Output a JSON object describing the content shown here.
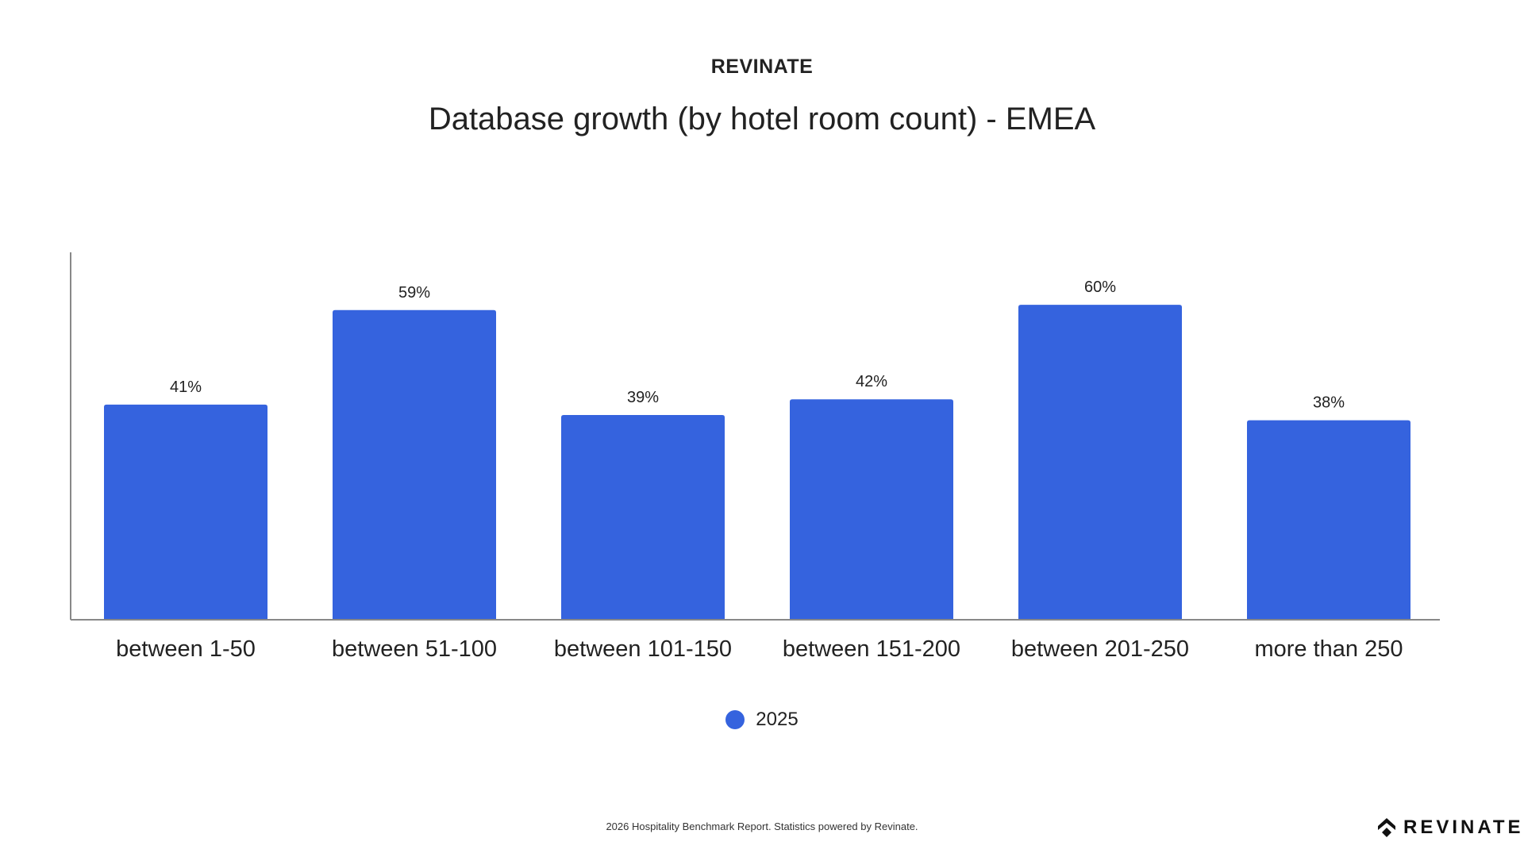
{
  "header": {
    "brand": "REVINATE"
  },
  "chart_data": {
    "type": "bar",
    "title": "Database growth (by hotel room count) - EMEA",
    "categories": [
      "between 1-50",
      "between 51-100",
      "between 101-150",
      "between 151-200",
      "between 201-250",
      "more than 250"
    ],
    "series": [
      {
        "name": "2025",
        "values": [
          41,
          59,
          39,
          42,
          60,
          38
        ],
        "labels": [
          "41%",
          "59%",
          "39%",
          "42%",
          "60%",
          "38%"
        ],
        "color": "#3563DE"
      }
    ],
    "xlabel": "",
    "ylabel": "",
    "ylim": [
      0,
      70
    ],
    "grid": false,
    "legend": "bottom-center"
  },
  "footer": {
    "text": "2026 Hospitality Benchmark Report. Statistics powered by Revinate.",
    "logo_text": "REVINATE"
  }
}
